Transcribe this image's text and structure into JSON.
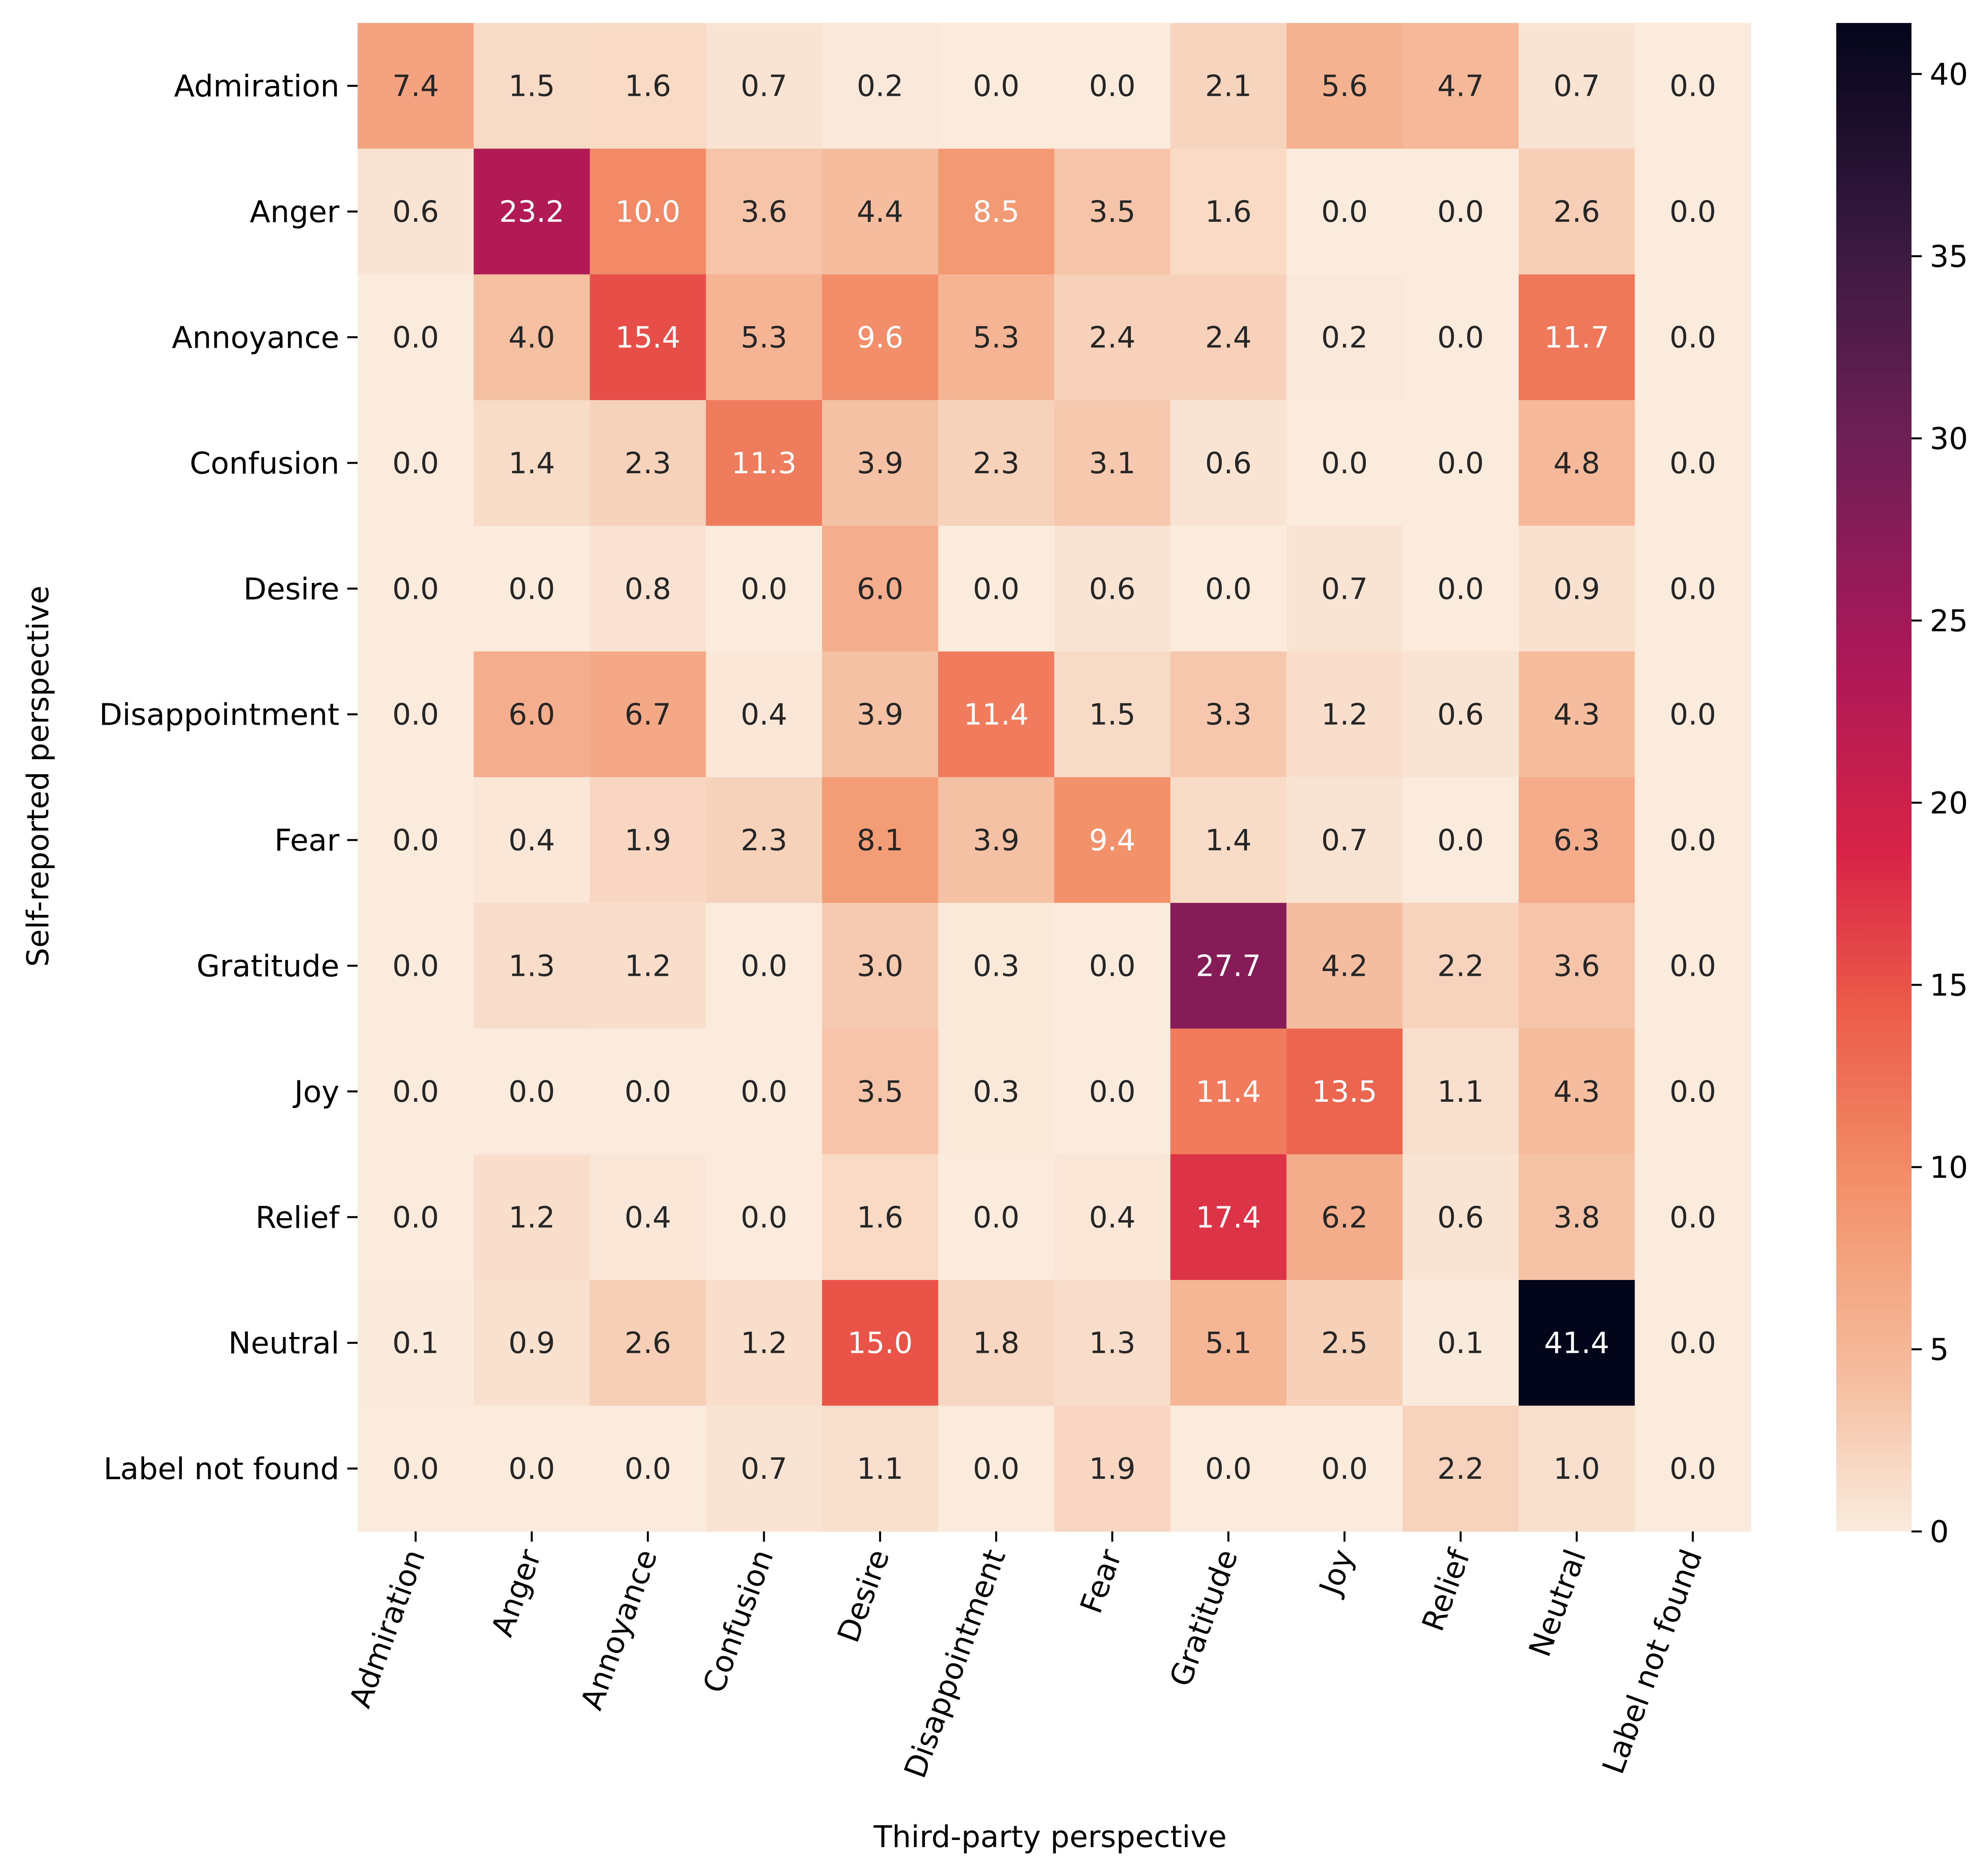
{
  "chart_data": {
    "type": "heatmap",
    "title": "",
    "xlabel": "Third-party perspective",
    "ylabel": "Self-reported perspective",
    "x_categories": [
      "Admiration",
      "Anger",
      "Annoyance",
      "Confusion",
      "Desire",
      "Disappointment",
      "Fear",
      "Gratitude",
      "Joy",
      "Relief",
      "Neutral",
      "Label not found"
    ],
    "y_categories": [
      "Admiration",
      "Anger",
      "Annoyance",
      "Confusion",
      "Desire",
      "Disappointment",
      "Fear",
      "Gratitude",
      "Joy",
      "Relief",
      "Neutral",
      "Label not found"
    ],
    "values": [
      [
        7.4,
        1.5,
        1.6,
        0.7,
        0.2,
        0.0,
        0.0,
        2.1,
        5.6,
        4.7,
        0.7,
        0.0
      ],
      [
        0.6,
        23.2,
        10.0,
        3.6,
        4.4,
        8.5,
        3.5,
        1.6,
        0.0,
        0.0,
        2.6,
        0.0
      ],
      [
        0.0,
        4.0,
        15.4,
        5.3,
        9.6,
        5.3,
        2.4,
        2.4,
        0.2,
        0.0,
        11.7,
        0.0
      ],
      [
        0.0,
        1.4,
        2.3,
        11.3,
        3.9,
        2.3,
        3.1,
        0.6,
        0.0,
        0.0,
        4.8,
        0.0
      ],
      [
        0.0,
        0.0,
        0.8,
        0.0,
        6.0,
        0.0,
        0.6,
        0.0,
        0.7,
        0.0,
        0.9,
        0.0
      ],
      [
        0.0,
        6.0,
        6.7,
        0.4,
        3.9,
        11.4,
        1.5,
        3.3,
        1.2,
        0.6,
        4.3,
        0.0
      ],
      [
        0.0,
        0.4,
        1.9,
        2.3,
        8.1,
        3.9,
        9.4,
        1.4,
        0.7,
        0.0,
        6.3,
        0.0
      ],
      [
        0.0,
        1.3,
        1.2,
        0.0,
        3.0,
        0.3,
        0.0,
        27.7,
        4.2,
        2.2,
        3.6,
        0.0
      ],
      [
        0.0,
        0.0,
        0.0,
        0.0,
        3.5,
        0.3,
        0.0,
        11.4,
        13.5,
        1.1,
        4.3,
        0.0
      ],
      [
        0.0,
        1.2,
        0.4,
        0.0,
        1.6,
        0.0,
        0.4,
        17.4,
        6.2,
        0.6,
        3.8,
        0.0
      ],
      [
        0.1,
        0.9,
        2.6,
        1.2,
        15.0,
        1.8,
        1.3,
        5.1,
        2.5,
        0.1,
        41.4,
        0.0
      ],
      [
        0.0,
        0.0,
        0.0,
        0.7,
        1.1,
        0.0,
        1.9,
        0.0,
        0.0,
        2.2,
        1.0,
        0.0
      ]
    ],
    "colormap": "rocket (reversed)",
    "colorbar": {
      "range": [
        0,
        41.4
      ],
      "ticks": [
        0,
        5,
        10,
        15,
        20,
        25,
        30,
        35,
        40
      ]
    },
    "grid": false,
    "legend": "colorbar-right"
  }
}
